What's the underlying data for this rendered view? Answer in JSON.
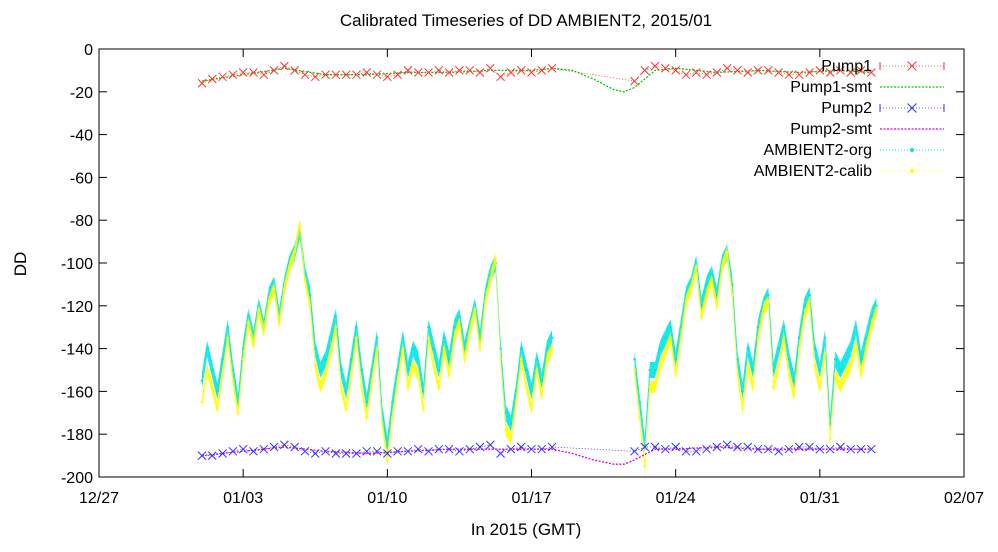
{
  "chart_data": {
    "type": "scatter",
    "title": "Calibrated Timeseries of DD AMBIENT2, 2015/01",
    "xlabel": "In 2015 (GMT)",
    "ylabel": "DD",
    "xlim": [
      "2014-12-27",
      "2015-02-07"
    ],
    "ylim": [
      -200,
      0
    ],
    "x_ticks": [
      "12/27",
      "01/03",
      "01/10",
      "01/17",
      "01/24",
      "01/31",
      "02/07"
    ],
    "y_ticks": [
      0,
      -20,
      -40,
      -60,
      -80,
      -100,
      -120,
      -140,
      -160,
      -180,
      -200
    ],
    "grid": false,
    "legend_position": "top-right",
    "series": [
      {
        "name": "Pump1",
        "color": "#ff3333",
        "marker": "x",
        "x": [
          "2015-01-01",
          "2015-01-01T12",
          "2015-01-02",
          "2015-01-02T12",
          "2015-01-03",
          "2015-01-03T12",
          "2015-01-04",
          "2015-01-04T12",
          "2015-01-05",
          "2015-01-05T12",
          "2015-01-06",
          "2015-01-06T12",
          "2015-01-07",
          "2015-01-07T12",
          "2015-01-08",
          "2015-01-08T12",
          "2015-01-09",
          "2015-01-09T12",
          "2015-01-10",
          "2015-01-10T12",
          "2015-01-11",
          "2015-01-11T12",
          "2015-01-12",
          "2015-01-12T12",
          "2015-01-13",
          "2015-01-13T12",
          "2015-01-14",
          "2015-01-14T12",
          "2015-01-15",
          "2015-01-15T12",
          "2015-01-16",
          "2015-01-16T12",
          "2015-01-17",
          "2015-01-17T12",
          "2015-01-18",
          "2015-01-22",
          "2015-01-22T12",
          "2015-01-23",
          "2015-01-23T12",
          "2015-01-24",
          "2015-01-24T12",
          "2015-01-25",
          "2015-01-25T12",
          "2015-01-26",
          "2015-01-26T12",
          "2015-01-27",
          "2015-01-27T12",
          "2015-01-28",
          "2015-01-28T12",
          "2015-01-29",
          "2015-01-29T12",
          "2015-01-30",
          "2015-01-30T12",
          "2015-01-31",
          "2015-01-31T12",
          "2015-02-01",
          "2015-02-01T12",
          "2015-02-02",
          "2015-02-02T12"
        ],
        "y": [
          -16,
          -14,
          -13,
          -12,
          -11,
          -11,
          -12,
          -10,
          -8,
          -10,
          -12,
          -13,
          -12,
          -12,
          -12,
          -12,
          -11,
          -12,
          -13,
          -12,
          -10,
          -11,
          -11,
          -10,
          -11,
          -10,
          -10,
          -11,
          -9,
          -13,
          -11,
          -10,
          -11,
          -10,
          -9,
          -15,
          -10,
          -8,
          -9,
          -10,
          -12,
          -11,
          -12,
          -11,
          -9,
          -10,
          -11,
          -10,
          -10,
          -11,
          -12,
          -12,
          -11,
          -10,
          -11,
          -10,
          -11,
          -10,
          -11
        ]
      },
      {
        "name": "Pump1-smt",
        "color": "#00cc00",
        "x": [
          "2015-01-01",
          "2015-01-03",
          "2015-01-05",
          "2015-01-07",
          "2015-01-09",
          "2015-01-11",
          "2015-01-13",
          "2015-01-15",
          "2015-01-17",
          "2015-01-18",
          "2015-01-19",
          "2015-01-20",
          "2015-01-21",
          "2015-01-21T12",
          "2015-01-22",
          "2015-01-23",
          "2015-01-24",
          "2015-01-26",
          "2015-01-28",
          "2015-01-30",
          "2015-02-01",
          "2015-02-02T12"
        ],
        "y": [
          -15,
          -12,
          -9,
          -12,
          -12,
          -11,
          -11,
          -10,
          -10,
          -9,
          -10,
          -14,
          -19,
          -20,
          -18,
          -10,
          -9,
          -11,
          -10,
          -11,
          -10,
          -11
        ]
      },
      {
        "name": "Pump2",
        "color": "#3333ff",
        "marker": "x",
        "x": [
          "2015-01-01",
          "2015-01-01T12",
          "2015-01-02",
          "2015-01-02T12",
          "2015-01-03",
          "2015-01-03T12",
          "2015-01-04",
          "2015-01-04T12",
          "2015-01-05",
          "2015-01-05T12",
          "2015-01-06",
          "2015-01-06T12",
          "2015-01-07",
          "2015-01-07T12",
          "2015-01-08",
          "2015-01-08T12",
          "2015-01-09",
          "2015-01-09T12",
          "2015-01-10",
          "2015-01-10T12",
          "2015-01-11",
          "2015-01-11T12",
          "2015-01-12",
          "2015-01-12T12",
          "2015-01-13",
          "2015-01-13T12",
          "2015-01-14",
          "2015-01-14T12",
          "2015-01-15",
          "2015-01-15T12",
          "2015-01-16",
          "2015-01-16T12",
          "2015-01-17",
          "2015-01-17T12",
          "2015-01-18",
          "2015-01-22",
          "2015-01-22T12",
          "2015-01-23",
          "2015-01-23T12",
          "2015-01-24",
          "2015-01-24T12",
          "2015-01-25",
          "2015-01-25T12",
          "2015-01-26",
          "2015-01-26T12",
          "2015-01-27",
          "2015-01-27T12",
          "2015-01-28",
          "2015-01-28T12",
          "2015-01-29",
          "2015-01-29T12",
          "2015-01-30",
          "2015-01-30T12",
          "2015-01-31",
          "2015-01-31T12",
          "2015-02-01",
          "2015-02-01T12",
          "2015-02-02",
          "2015-02-02T12"
        ],
        "y": [
          -190,
          -190,
          -189,
          -188,
          -187,
          -188,
          -187,
          -186,
          -185,
          -186,
          -188,
          -189,
          -188,
          -189,
          -189,
          -189,
          -188,
          -188,
          -189,
          -188,
          -188,
          -187,
          -188,
          -187,
          -187,
          -188,
          -187,
          -186,
          -185,
          -189,
          -187,
          -186,
          -187,
          -187,
          -186,
          -188,
          -186,
          -186,
          -187,
          -186,
          -188,
          -188,
          -187,
          -186,
          -185,
          -186,
          -186,
          -187,
          -187,
          -188,
          -187,
          -186,
          -186,
          -187,
          -187,
          -186,
          -187,
          -187,
          -187
        ]
      },
      {
        "name": "Pump2-smt",
        "color": "#dd00dd",
        "x": [
          "2015-01-01",
          "2015-01-03",
          "2015-01-05",
          "2015-01-07",
          "2015-01-09",
          "2015-01-11",
          "2015-01-13",
          "2015-01-15",
          "2015-01-17",
          "2015-01-18",
          "2015-01-19",
          "2015-01-20",
          "2015-01-21",
          "2015-01-21T12",
          "2015-01-22",
          "2015-01-23",
          "2015-01-24",
          "2015-01-26",
          "2015-01-28",
          "2015-01-30",
          "2015-02-01",
          "2015-02-02T12"
        ],
        "y": [
          -190,
          -188,
          -186,
          -188,
          -189,
          -188,
          -187,
          -187,
          -187,
          -187,
          -189,
          -192,
          -194,
          -194,
          -192,
          -187,
          -187,
          -186,
          -187,
          -187,
          -187,
          -187
        ]
      },
      {
        "name": "AMBIENT2-org",
        "color": "#00e5e5",
        "marker": "dot",
        "x": [
          "2015-01-01",
          "2015-01-01T06",
          "2015-01-01T12",
          "2015-01-01T18",
          "2015-01-02",
          "2015-01-02T06",
          "2015-01-02T12",
          "2015-01-02T18",
          "2015-01-03",
          "2015-01-03T06",
          "2015-01-03T12",
          "2015-01-03T18",
          "2015-01-04",
          "2015-01-04T06",
          "2015-01-04T12",
          "2015-01-04T18",
          "2015-01-05",
          "2015-01-05T06",
          "2015-01-05T12",
          "2015-01-05T18",
          "2015-01-06",
          "2015-01-06T06",
          "2015-01-06T12",
          "2015-01-06T18",
          "2015-01-07",
          "2015-01-07T06",
          "2015-01-07T12",
          "2015-01-07T18",
          "2015-01-08",
          "2015-01-08T06",
          "2015-01-08T12",
          "2015-01-08T18",
          "2015-01-09",
          "2015-01-09T06",
          "2015-01-09T12",
          "2015-01-09T18",
          "2015-01-10",
          "2015-01-10T06",
          "2015-01-10T12",
          "2015-01-10T18",
          "2015-01-11",
          "2015-01-11T06",
          "2015-01-11T12",
          "2015-01-11T18",
          "2015-01-12",
          "2015-01-12T06",
          "2015-01-12T12",
          "2015-01-12T18",
          "2015-01-13",
          "2015-01-13T06",
          "2015-01-13T12",
          "2015-01-13T18",
          "2015-01-14",
          "2015-01-14T06",
          "2015-01-14T12",
          "2015-01-14T18",
          "2015-01-15",
          "2015-01-15T06",
          "2015-01-15T12",
          "2015-01-15T18",
          "2015-01-16",
          "2015-01-16T06",
          "2015-01-16T12",
          "2015-01-16T18",
          "2015-01-17",
          "2015-01-17T06",
          "2015-01-17T12",
          "2015-01-17T18",
          "2015-01-18",
          "2015-01-22",
          "2015-01-22T06",
          "2015-01-22T12",
          "2015-01-22T18",
          "2015-01-23",
          "2015-01-23T06",
          "2015-01-23T12",
          "2015-01-23T18",
          "2015-01-24",
          "2015-01-24T06",
          "2015-01-24T12",
          "2015-01-24T18",
          "2015-01-25",
          "2015-01-25T06",
          "2015-01-25T12",
          "2015-01-25T18",
          "2015-01-26",
          "2015-01-26T06",
          "2015-01-26T12",
          "2015-01-26T18",
          "2015-01-27",
          "2015-01-27T06",
          "2015-01-27T12",
          "2015-01-27T18",
          "2015-01-28",
          "2015-01-28T06",
          "2015-01-28T12",
          "2015-01-28T18",
          "2015-01-29",
          "2015-01-29T06",
          "2015-01-29T12",
          "2015-01-29T18",
          "2015-01-30",
          "2015-01-30T06",
          "2015-01-30T12",
          "2015-01-30T18",
          "2015-01-31",
          "2015-01-31T06",
          "2015-01-31T12",
          "2015-01-31T18",
          "2015-02-01",
          "2015-02-01T06",
          "2015-02-01T12",
          "2015-02-01T18",
          "2015-02-02",
          "2015-02-02T06",
          "2015-02-02T12",
          "2015-02-02T18"
        ],
        "y": [
          -155,
          -140,
          -150,
          -160,
          -145,
          -130,
          -150,
          -165,
          -140,
          -125,
          -135,
          -120,
          -130,
          -115,
          -110,
          -125,
          -110,
          -100,
          -95,
          -85,
          -105,
          -115,
          -140,
          -150,
          -145,
          -135,
          -125,
          -150,
          -160,
          -145,
          -130,
          -150,
          -165,
          -150,
          -135,
          -170,
          -185,
          -165,
          -150,
          -135,
          -150,
          -140,
          -145,
          -160,
          -130,
          -140,
          -150,
          -135,
          -145,
          -130,
          -125,
          -140,
          -130,
          -120,
          -135,
          -115,
          -105,
          -100,
          -140,
          -170,
          -175,
          -160,
          -140,
          -150,
          -160,
          -145,
          -155,
          -140,
          -135,
          -145,
          -165,
          -185,
          -150,
          -150,
          -140,
          -135,
          -130,
          -145,
          -130,
          -115,
          -110,
          -100,
          -120,
          -110,
          -105,
          -115,
          -100,
          -95,
          -110,
          -145,
          -160,
          -140,
          -150,
          -130,
          -120,
          -115,
          -150,
          -140,
          -130,
          -145,
          -155,
          -135,
          -120,
          -115,
          -140,
          -150,
          -135,
          -175,
          -145,
          -150,
          -145,
          -140,
          -130,
          -145,
          -135,
          -125,
          -120
        ]
      },
      {
        "name": "AMBIENT2-calib",
        "color": "#ffff00",
        "marker": "dot",
        "x": [
          "2015-01-01",
          "2015-01-01T06",
          "2015-01-01T12",
          "2015-01-01T18",
          "2015-01-02",
          "2015-01-02T06",
          "2015-01-02T12",
          "2015-01-02T18",
          "2015-01-03",
          "2015-01-03T06",
          "2015-01-03T12",
          "2015-01-03T18",
          "2015-01-04",
          "2015-01-04T06",
          "2015-01-04T12",
          "2015-01-04T18",
          "2015-01-05",
          "2015-01-05T06",
          "2015-01-05T12",
          "2015-01-05T18",
          "2015-01-06",
          "2015-01-06T06",
          "2015-01-06T12",
          "2015-01-06T18",
          "2015-01-07",
          "2015-01-07T06",
          "2015-01-07T12",
          "2015-01-07T18",
          "2015-01-08",
          "2015-01-08T06",
          "2015-01-08T12",
          "2015-01-08T18",
          "2015-01-09",
          "2015-01-09T06",
          "2015-01-09T12",
          "2015-01-09T18",
          "2015-01-10",
          "2015-01-10T06",
          "2015-01-10T12",
          "2015-01-10T18",
          "2015-01-11",
          "2015-01-11T06",
          "2015-01-11T12",
          "2015-01-11T18",
          "2015-01-12",
          "2015-01-12T06",
          "2015-01-12T12",
          "2015-01-12T18",
          "2015-01-13",
          "2015-01-13T06",
          "2015-01-13T12",
          "2015-01-13T18",
          "2015-01-14",
          "2015-01-14T06",
          "2015-01-14T12",
          "2015-01-14T18",
          "2015-01-15",
          "2015-01-15T06",
          "2015-01-15T12",
          "2015-01-15T18",
          "2015-01-16",
          "2015-01-16T06",
          "2015-01-16T12",
          "2015-01-16T18",
          "2015-01-17",
          "2015-01-17T06",
          "2015-01-17T12",
          "2015-01-17T18",
          "2015-01-18",
          "2015-01-22",
          "2015-01-22T06",
          "2015-01-22T12",
          "2015-01-22T18",
          "2015-01-23",
          "2015-01-23T06",
          "2015-01-23T12",
          "2015-01-23T18",
          "2015-01-24",
          "2015-01-24T06",
          "2015-01-24T12",
          "2015-01-24T18",
          "2015-01-25",
          "2015-01-25T06",
          "2015-01-25T12",
          "2015-01-25T18",
          "2015-01-26",
          "2015-01-26T06",
          "2015-01-26T12",
          "2015-01-26T18",
          "2015-01-27",
          "2015-01-27T06",
          "2015-01-27T12",
          "2015-01-27T18",
          "2015-01-28",
          "2015-01-28T06",
          "2015-01-28T12",
          "2015-01-28T18",
          "2015-01-29",
          "2015-01-29T06",
          "2015-01-29T12",
          "2015-01-29T18",
          "2015-01-30",
          "2015-01-30T06",
          "2015-01-30T12",
          "2015-01-30T18",
          "2015-01-31",
          "2015-01-31T06",
          "2015-01-31T12",
          "2015-01-31T18",
          "2015-02-01",
          "2015-02-01T06",
          "2015-02-01T12",
          "2015-02-01T18",
          "2015-02-02",
          "2015-02-02T06",
          "2015-02-02T12",
          "2015-02-02T18"
        ],
        "y": [
          -165,
          -150,
          -158,
          -168,
          -152,
          -135,
          -155,
          -170,
          -145,
          -128,
          -138,
          -122,
          -132,
          -118,
          -112,
          -128,
          -112,
          -102,
          -95,
          -82,
          -108,
          -120,
          -148,
          -158,
          -152,
          -142,
          -130,
          -158,
          -168,
          -152,
          -135,
          -158,
          -172,
          -155,
          -140,
          -175,
          -192,
          -172,
          -155,
          -140,
          -158,
          -148,
          -152,
          -168,
          -135,
          -148,
          -158,
          -140,
          -152,
          -135,
          -128,
          -145,
          -132,
          -122,
          -140,
          -118,
          -108,
          -98,
          -145,
          -178,
          -182,
          -165,
          -145,
          -158,
          -168,
          -150,
          -162,
          -145,
          -140,
          -150,
          -172,
          -195,
          -158,
          -158,
          -148,
          -142,
          -135,
          -152,
          -135,
          -118,
          -112,
          -102,
          -125,
          -115,
          -108,
          -120,
          -102,
          -95,
          -115,
          -152,
          -168,
          -148,
          -158,
          -135,
          -122,
          -118,
          -158,
          -148,
          -135,
          -152,
          -162,
          -140,
          -125,
          -118,
          -148,
          -158,
          -142,
          -182,
          -152,
          -158,
          -152,
          -148,
          -138,
          -152,
          -140,
          -130,
          -122
        ]
      }
    ]
  }
}
